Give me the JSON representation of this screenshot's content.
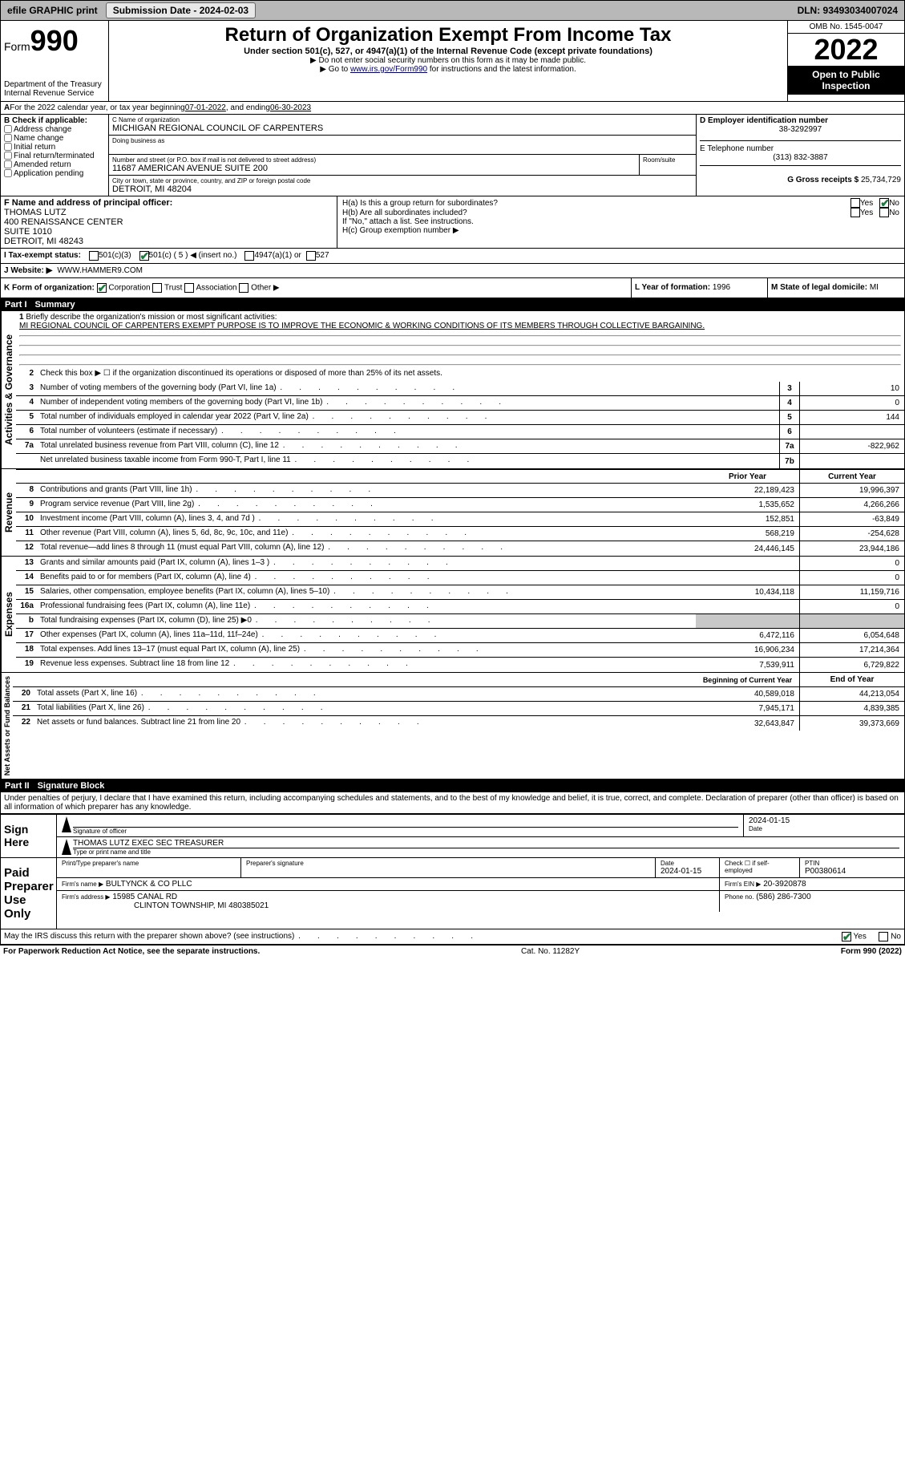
{
  "topbar": {
    "efile": "efile GRAPHIC print",
    "submission": "Submission Date - 2024-02-03",
    "dln": "DLN: 93493034007024"
  },
  "header": {
    "form_prefix": "Form",
    "form_num": "990",
    "dept": "Department of the Treasury",
    "irs": "Internal Revenue Service",
    "title": "Return of Organization Exempt From Income Tax",
    "subtitle": "Under section 501(c), 527, or 4947(a)(1) of the Internal Revenue Code (except private foundations)",
    "note1": "▶ Do not enter social security numbers on this form as it may be made public.",
    "note2_pre": "▶ Go to ",
    "note2_link": "www.irs.gov/Form990",
    "note2_post": " for instructions and the latest information.",
    "omb": "OMB No. 1545-0047",
    "year": "2022",
    "open": "Open to Public Inspection"
  },
  "lineA": {
    "text_pre": "For the 2022 calendar year, or tax year beginning ",
    "begin": "07-01-2022",
    "mid": " , and ending ",
    "end": "06-30-2023"
  },
  "B": {
    "label": "B Check if applicable:",
    "items": [
      "Address change",
      "Name change",
      "Initial return",
      "Final return/terminated",
      "Amended return",
      "Application pending"
    ]
  },
  "C": {
    "name_label": "C Name of organization",
    "name": "MICHIGAN REGIONAL COUNCIL OF CARPENTERS",
    "dba_label": "Doing business as",
    "addr_label": "Number and street (or P.O. box if mail is not delivered to street address)",
    "room_label": "Room/suite",
    "addr": "11687 AMERICAN AVENUE SUITE 200",
    "city_label": "City or town, state or province, country, and ZIP or foreign postal code",
    "city": "DETROIT, MI  48204"
  },
  "D": {
    "label": "D Employer identification number",
    "value": "38-3292997"
  },
  "E": {
    "label": "E Telephone number",
    "value": "(313) 832-3887"
  },
  "G": {
    "label": "G Gross receipts $",
    "value": "25,734,729"
  },
  "F": {
    "label": "F  Name and address of principal officer:",
    "name": "THOMAS LUTZ",
    "addr1": "400 RENAISSANCE CENTER",
    "addr2": "SUITE 1010",
    "addr3": "DETROIT, MI  48243"
  },
  "H": {
    "a_label": "H(a)  Is this a group return for subordinates?",
    "b_label": "H(b)  Are all subordinates included?",
    "b_note": "If \"No,\" attach a list. See instructions.",
    "c_label": "H(c)  Group exemption number ▶",
    "yes": "Yes",
    "no": "No"
  },
  "I": {
    "label": "I    Tax-exempt status:",
    "c3": "501(c)(3)",
    "c": "501(c) ( 5 ) ◀ (insert no.)",
    "a1": "4947(a)(1) or",
    "s527": "527"
  },
  "J": {
    "label": "J   Website: ▶",
    "value": "WWW.HAMMER9.COM"
  },
  "K": {
    "label": "K Form of organization:",
    "corp": "Corporation",
    "trust": "Trust",
    "assoc": "Association",
    "other": "Other ▶"
  },
  "L": {
    "label": "L Year of formation:",
    "value": "1996"
  },
  "M": {
    "label": "M State of legal domicile:",
    "value": "MI"
  },
  "part1": {
    "header_num": "Part I",
    "header_title": "Summary",
    "q1_label": "Briefly describe the organization's mission or most significant activities:",
    "q1_text": "MI REGIONAL COUNCIL OF CARPENTERS EXEMPT PURPOSE IS TO IMPROVE THE ECONOMIC & WORKING CONDITIONS OF ITS MEMBERS THROUGH COLLECTIVE BARGAINING.",
    "q2_label": "Check this box ▶ ☐ if the organization discontinued its operations or disposed of more than 25% of its net assets.",
    "sections": {
      "gov": "Activities & Governance",
      "rev": "Revenue",
      "exp": "Expenses",
      "net": "Net Assets or Fund Balances"
    },
    "rows_gov": [
      {
        "n": "3",
        "label": "Number of voting members of the governing body (Part VI, line 1a)",
        "box": "3",
        "val": "10"
      },
      {
        "n": "4",
        "label": "Number of independent voting members of the governing body (Part VI, line 1b)",
        "box": "4",
        "val": "0"
      },
      {
        "n": "5",
        "label": "Total number of individuals employed in calendar year 2022 (Part V, line 2a)",
        "box": "5",
        "val": "144"
      },
      {
        "n": "6",
        "label": "Total number of volunteers (estimate if necessary)",
        "box": "6",
        "val": ""
      },
      {
        "n": "7a",
        "label": "Total unrelated business revenue from Part VIII, column (C), line 12",
        "box": "7a",
        "val": "-822,962"
      },
      {
        "n": "",
        "label": "Net unrelated business taxable income from Form 990-T, Part I, line 11",
        "box": "7b",
        "val": ""
      }
    ],
    "col_prior": "Prior Year",
    "col_current": "Current Year",
    "rows_rev": [
      {
        "n": "8",
        "label": "Contributions and grants (Part VIII, line 1h)",
        "p": "22,189,423",
        "c": "19,996,397"
      },
      {
        "n": "9",
        "label": "Program service revenue (Part VIII, line 2g)",
        "p": "1,535,652",
        "c": "4,266,266"
      },
      {
        "n": "10",
        "label": "Investment income (Part VIII, column (A), lines 3, 4, and 7d )",
        "p": "152,851",
        "c": "-63,849"
      },
      {
        "n": "11",
        "label": "Other revenue (Part VIII, column (A), lines 5, 6d, 8c, 9c, 10c, and 11e)",
        "p": "568,219",
        "c": "-254,628"
      },
      {
        "n": "12",
        "label": "Total revenue—add lines 8 through 11 (must equal Part VIII, column (A), line 12)",
        "p": "24,446,145",
        "c": "23,944,186"
      }
    ],
    "rows_exp": [
      {
        "n": "13",
        "label": "Grants and similar amounts paid (Part IX, column (A), lines 1–3 )",
        "p": "",
        "c": "0"
      },
      {
        "n": "14",
        "label": "Benefits paid to or for members (Part IX, column (A), line 4)",
        "p": "",
        "c": "0"
      },
      {
        "n": "15",
        "label": "Salaries, other compensation, employee benefits (Part IX, column (A), lines 5–10)",
        "p": "10,434,118",
        "c": "11,159,716"
      },
      {
        "n": "16a",
        "label": "Professional fundraising fees (Part IX, column (A), line 11e)",
        "p": "",
        "c": "0"
      },
      {
        "n": "b",
        "label": "Total fundraising expenses (Part IX, column (D), line 25) ▶0",
        "p": "GREY",
        "c": "GREY"
      },
      {
        "n": "17",
        "label": "Other expenses (Part IX, column (A), lines 11a–11d, 11f–24e)",
        "p": "6,472,116",
        "c": "6,054,648"
      },
      {
        "n": "18",
        "label": "Total expenses. Add lines 13–17 (must equal Part IX, column (A), line 25)",
        "p": "16,906,234",
        "c": "17,214,364"
      },
      {
        "n": "19",
        "label": "Revenue less expenses. Subtract line 18 from line 12",
        "p": "7,539,911",
        "c": "6,729,822"
      }
    ],
    "col_begin": "Beginning of Current Year",
    "col_end": "End of Year",
    "rows_net": [
      {
        "n": "20",
        "label": "Total assets (Part X, line 16)",
        "p": "40,589,018",
        "c": "44,213,054"
      },
      {
        "n": "21",
        "label": "Total liabilities (Part X, line 26)",
        "p": "7,945,171",
        "c": "4,839,385"
      },
      {
        "n": "22",
        "label": "Net assets or fund balances. Subtract line 21 from line 20",
        "p": "32,643,847",
        "c": "39,373,669"
      }
    ]
  },
  "part2": {
    "header_num": "Part II",
    "header_title": "Signature Block",
    "penalty": "Under penalties of perjury, I declare that I have examined this return, including accompanying schedules and statements, and to the best of my knowledge and belief, it is true, correct, and complete. Declaration of preparer (other than officer) is based on all information of which preparer has any knowledge.",
    "sign_here": "Sign Here",
    "sig_officer": "Signature of officer",
    "date_label": "Date",
    "sig_date": "2024-01-15",
    "name_title": "THOMAS LUTZ  EXEC SEC TREASURER",
    "name_title_label": "Type or print name and title",
    "paid": "Paid Preparer Use Only",
    "prep_name_label": "Print/Type preparer's name",
    "prep_sig_label": "Preparer's signature",
    "prep_date_label": "Date",
    "prep_date": "2024-01-15",
    "check_if": "Check ☐ if self-employed",
    "ptin_label": "PTIN",
    "ptin": "P00380614",
    "firm_name_label": "Firm's name    ▶",
    "firm_name": "BULTYNCK & CO PLLC",
    "firm_ein_label": "Firm's EIN ▶",
    "firm_ein": "20-3920878",
    "firm_addr_label": "Firm's address ▶",
    "firm_addr1": "15985 CANAL RD",
    "firm_addr2": "CLINTON TOWNSHIP, MI  480385021",
    "phone_label": "Phone no.",
    "phone": "(586) 286-7300",
    "discuss": "May the IRS discuss this return with the preparer shown above? (see instructions)",
    "yes": "Yes",
    "no": "No"
  },
  "footer": {
    "left": "For Paperwork Reduction Act Notice, see the separate instructions.",
    "mid": "Cat. No. 11282Y",
    "right_pre": "Form ",
    "right_form": "990",
    "right_post": " (2022)"
  }
}
